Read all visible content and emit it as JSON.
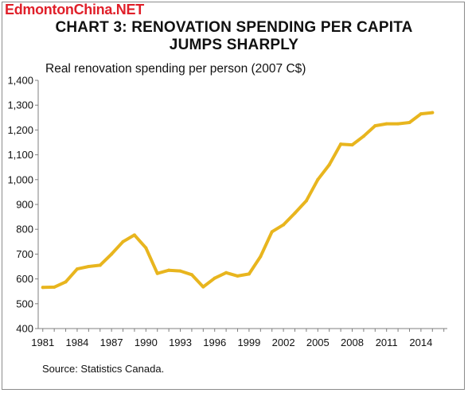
{
  "watermark": "EdmontonChina.NET",
  "chart_data": {
    "type": "line",
    "title": "CHART 3: RENOVATION SPENDING PER CAPITA JUMPS SHARPLY",
    "title_lines": [
      "CHART 3: RENOVATION SPENDING PER CAPITA",
      "JUMPS SHARPLY"
    ],
    "ylabel": "Real renovation spending per person (2007 C$)",
    "xlabel": "",
    "ylim": [
      400,
      1400
    ],
    "xlim": [
      1981,
      2015
    ],
    "y_ticks": [
      400,
      500,
      600,
      700,
      800,
      900,
      1000,
      1100,
      1200,
      1300,
      1400
    ],
    "y_tick_labels": [
      "400",
      "500",
      "600",
      "700",
      "800",
      "900",
      "1,000",
      "1,100",
      "1,200",
      "1,300",
      "1,400"
    ],
    "x_ticks": [
      1981,
      1984,
      1987,
      1990,
      1993,
      1996,
      1999,
      2002,
      2005,
      2008,
      2011,
      2014
    ],
    "x_tick_labels": [
      "1981",
      "1984",
      "1987",
      "1990",
      "1993",
      "1996",
      "1999",
      "2002",
      "2005",
      "2008",
      "2011",
      "2014"
    ],
    "grid": false,
    "series": [
      {
        "color": "#e8b51e",
        "x": [
          1981,
          1982,
          1983,
          1984,
          1985,
          1986,
          1987,
          1988,
          1989,
          1990,
          1991,
          1992,
          1993,
          1994,
          1995,
          1996,
          1997,
          1998,
          1999,
          2000,
          2001,
          2002,
          2003,
          2004,
          2005,
          2006,
          2007,
          2008,
          2009,
          2010,
          2011,
          2012,
          2013,
          2014,
          2015
        ],
        "values": [
          566,
          567,
          588,
          640,
          650,
          655,
          700,
          750,
          777,
          725,
          622,
          635,
          632,
          617,
          568,
          603,
          625,
          612,
          620,
          690,
          790,
          818,
          865,
          915,
          1000,
          1060,
          1143,
          1140,
          1175,
          1217,
          1225,
          1225,
          1230,
          1265,
          1270
        ]
      }
    ],
    "source": "Source: Statistics Canada."
  }
}
